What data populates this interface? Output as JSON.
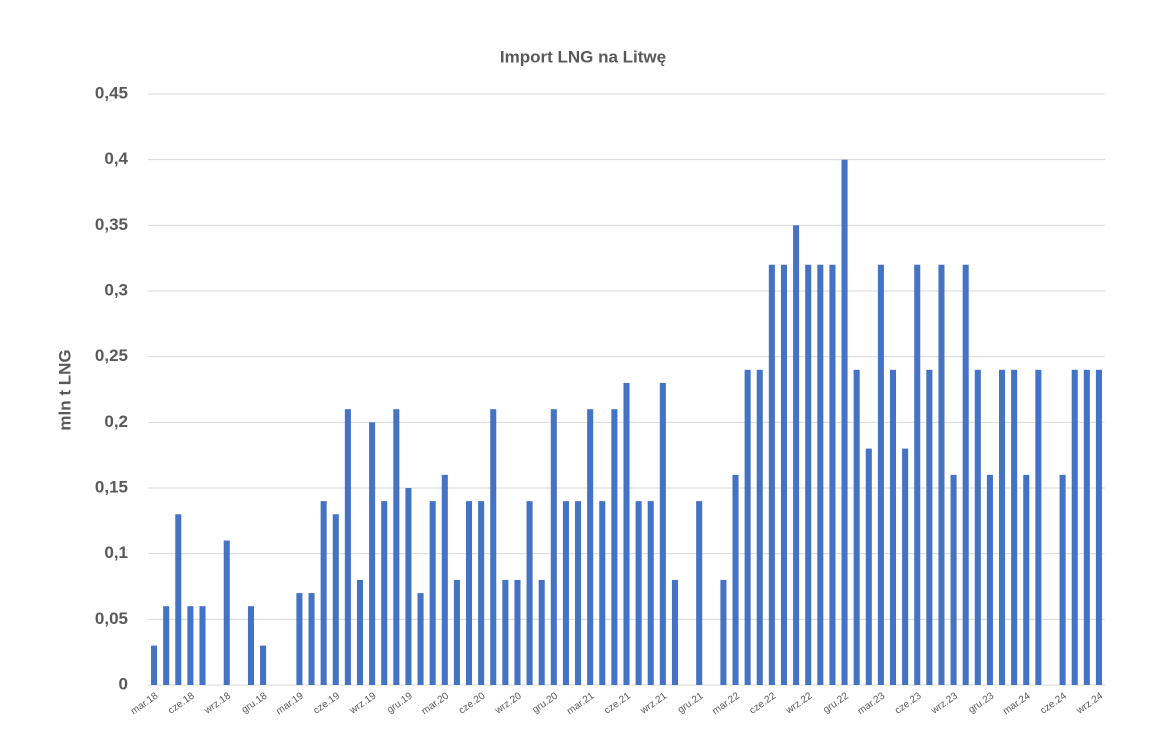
{
  "chart_data": {
    "type": "bar",
    "title": "Import LNG na Litwę",
    "y_label": "mln t LNG",
    "categories": [
      "mar.18",
      null,
      null,
      "cze.18",
      null,
      null,
      "wrz.18",
      null,
      null,
      "gru.18",
      null,
      null,
      "mar.19",
      null,
      null,
      "cze.19",
      null,
      null,
      "wrz.19",
      null,
      null,
      "gru.19",
      null,
      null,
      "mar.20",
      null,
      null,
      "cze.20",
      null,
      null,
      "wrz.20",
      null,
      null,
      "gru.20",
      null,
      null,
      "mar.21",
      null,
      null,
      "cze.21",
      null,
      null,
      "wrz.21",
      null,
      null,
      "gru.21",
      null,
      null,
      "mar.22",
      null,
      null,
      "cze.22",
      null,
      null,
      "wrz.22",
      null,
      null,
      "gru.22",
      null,
      null,
      "mar.23",
      null,
      null,
      "cze.23",
      null,
      null,
      "wrz.23",
      null,
      null,
      "gru.23",
      null,
      null,
      "mar.24",
      null,
      null,
      "cze.24",
      null,
      null,
      "wrz.24"
    ],
    "values": [
      0.03,
      0.06,
      0.13,
      0.06,
      0.06,
      0,
      0.11,
      0,
      0.06,
      0.03,
      0,
      0,
      0.07,
      0.07,
      0.14,
      0.13,
      0.21,
      0.08,
      0.2,
      0.14,
      0.21,
      0.15,
      0.07,
      0.14,
      0.16,
      0.08,
      0.14,
      0.14,
      0.21,
      0.08,
      0.08,
      0.14,
      0.08,
      0.21,
      0.14,
      0.14,
      0.21,
      0.14,
      0.21,
      0.23,
      0.14,
      0.14,
      0.23,
      0.08,
      0,
      0.14,
      0,
      0.08,
      0.16,
      0.24,
      0.24,
      0.32,
      0.32,
      0.35,
      0.32,
      0.32,
      0.32,
      0.4,
      0.24,
      0.18,
      0.32,
      0.24,
      0.18,
      0.32,
      0.24,
      0.32,
      0.16,
      0.32,
      0.24,
      0.16,
      0.24,
      0.24,
      0.16,
      0.24,
      0,
      0.16,
      0.24,
      0.24,
      0.24
    ],
    "color": "#4472c4",
    "ylim": [
      0,
      0.45
    ],
    "yticks": [
      0,
      {
        "value": 0.05,
        "label": "0,05"
      },
      {
        "value": 0.1,
        "label": "0,1"
      },
      {
        "value": 0.15,
        "label": "0,15"
      },
      {
        "value": 0.2,
        "label": "0,2"
      },
      {
        "value": 0.25,
        "label": "0,25"
      },
      {
        "value": 0.3,
        "label": "0,3"
      },
      {
        "value": 0.35,
        "label": "0,35"
      },
      {
        "value": 0.4,
        "label": "0,4"
      },
      {
        "value": 0.45,
        "label": "0,45"
      }
    ],
    "grid": true
  }
}
